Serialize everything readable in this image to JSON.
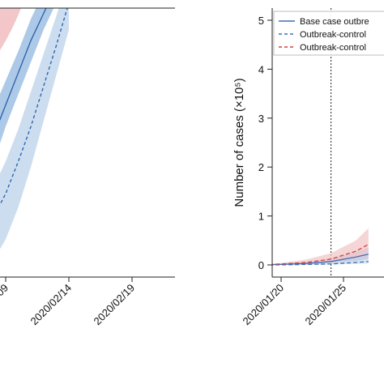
{
  "chart_data": [
    {
      "panel": "left",
      "type": "line",
      "title": "",
      "xlabel": "",
      "ylabel": "",
      "x_ticks": [
        "2020/02/09",
        "2020/02/14",
        "2020/02/19"
      ],
      "series": [
        {
          "style": "solid",
          "color": "#2b5da8",
          "band_color": "#9ec0e3",
          "x": [
            "2020/02/06",
            "2020/02/07",
            "2020/02/08",
            "2020/02/09",
            "2020/02/10",
            "2020/02/11",
            "2020/02/12",
            "2020/02/13"
          ],
          "values": [
            0.32,
            0.41,
            0.52,
            0.64,
            0.76,
            0.88,
            0.98,
            1.08
          ],
          "lower": [
            0.22,
            0.31,
            0.42,
            0.56,
            0.68,
            0.8,
            0.92,
            1.02
          ],
          "upper": [
            0.42,
            0.52,
            0.62,
            0.73,
            0.84,
            0.96,
            1.06,
            1.15
          ]
        },
        {
          "style": "dashed",
          "color": "#2b5da8",
          "band_color": "#c6d9ee",
          "x": [
            "2020/02/06",
            "2020/02/07",
            "2020/02/08",
            "2020/02/09",
            "2020/02/10",
            "2020/02/11",
            "2020/02/12",
            "2020/02/13",
            "2020/02/14"
          ],
          "values": [
            0.08,
            0.14,
            0.22,
            0.31,
            0.43,
            0.56,
            0.71,
            0.86,
            1.02
          ],
          "lower": [
            0.0,
            0.02,
            0.06,
            0.14,
            0.26,
            0.41,
            0.58,
            0.75,
            0.92
          ],
          "upper": [
            0.2,
            0.26,
            0.33,
            0.43,
            0.55,
            0.69,
            0.83,
            0.97,
            1.12
          ]
        }
      ],
      "extra_bands": [
        {
          "color": "#f3c7c9",
          "note": "partially visible at upper-left edge"
        }
      ]
    },
    {
      "panel": "right",
      "type": "line",
      "title": "",
      "xlabel": "",
      "ylabel": "Number of cases (×10⁵)",
      "ylim": [
        0,
        5.2
      ],
      "y_ticks": [
        "0",
        "1",
        "2",
        "3",
        "4",
        "5"
      ],
      "x_ticks": [
        "2020/01/20",
        "2020/01/25",
        "2020"
      ],
      "vline": "2020/01/24",
      "legend_position": "top-right",
      "legend": [
        {
          "label": "Base case outbre",
          "style": "solid",
          "color": "#3f6eb5"
        },
        {
          "label": "Outbreak-control",
          "style": "dashed",
          "color": "#3f6eb5"
        },
        {
          "label": "Outbreak-control",
          "style": "dashed",
          "color": "#d2413f"
        }
      ],
      "series": [
        {
          "style": "solid",
          "color": "#3f6eb5",
          "band_color": "#a9c3e3",
          "x": [
            "2020/01/18",
            "2020/01/20",
            "2020/01/22",
            "2020/01/24",
            "2020/01/26",
            "2020/01/27"
          ],
          "values": [
            0,
            0.01,
            0.03,
            0.07,
            0.16,
            0.22
          ],
          "lower": [
            0,
            0.0,
            0.01,
            0.03,
            0.08,
            0.12
          ],
          "upper": [
            0,
            0.02,
            0.06,
            0.13,
            0.26,
            0.36
          ]
        },
        {
          "style": "dashed",
          "color": "#3f6eb5",
          "band_color": "#cddcee",
          "x": [
            "2020/01/18",
            "2020/01/20",
            "2020/01/22",
            "2020/01/24",
            "2020/01/26",
            "2020/01/27"
          ],
          "values": [
            0,
            0.0,
            0.01,
            0.02,
            0.05,
            0.07
          ],
          "lower": [
            0,
            0.0,
            0.0,
            0.01,
            0.02,
            0.03
          ],
          "upper": [
            0,
            0.01,
            0.02,
            0.05,
            0.09,
            0.13
          ]
        },
        {
          "style": "dashed",
          "color": "#d2413f",
          "band_color": "#f2c7c8",
          "x": [
            "2020/01/18",
            "2020/01/20",
            "2020/01/22",
            "2020/01/24",
            "2020/01/26",
            "2020/01/27"
          ],
          "values": [
            0,
            0.02,
            0.05,
            0.12,
            0.28,
            0.42
          ],
          "lower": [
            0,
            0.0,
            0.02,
            0.05,
            0.12,
            0.18
          ],
          "upper": [
            0,
            0.04,
            0.11,
            0.24,
            0.5,
            0.75
          ]
        }
      ]
    }
  ]
}
